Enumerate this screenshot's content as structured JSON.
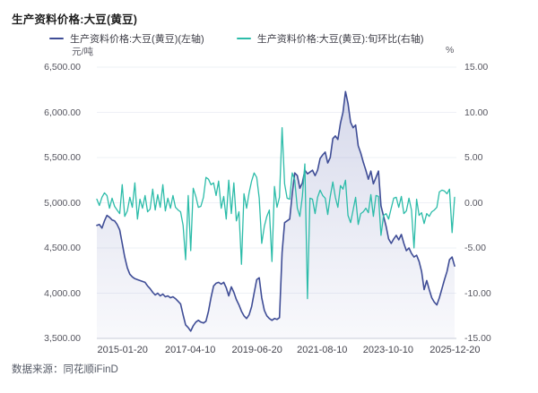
{
  "page": {
    "title": "生产资料价格:大豆(黄豆)",
    "source": "数据来源：同花顺iFinD"
  },
  "legend": [
    {
      "label": "生产资料价格:大豆(黄豆)(左轴)",
      "color": "#3F4D96"
    },
    {
      "label": "生产资料价格:大豆(黄豆):旬环比(右轴)",
      "color": "#2CBCA9"
    }
  ],
  "axes": {
    "left": {
      "unit": "元/吨",
      "ticks": [
        "6,500.00",
        "6,000.00",
        "5,500.00",
        "5,000.00",
        "4,500.00",
        "4,000.00",
        "3,500.00"
      ]
    },
    "right": {
      "unit": "%",
      "ticks": [
        "15.00",
        "10.00",
        "5.00",
        "0.00",
        "-5.00",
        "-10.00",
        "-15.00"
      ]
    },
    "x": {
      "ticks": [
        "2015-01-20",
        "2017-04-10",
        "2019-06-20",
        "2021-08-10",
        "2023-10-10",
        "2025-12-20"
      ]
    }
  },
  "colors": {
    "price_line": "#3F4D96",
    "pct_line": "#2CBCA9",
    "grid": "#eef0f6",
    "axis_line": "#c7ccd8",
    "area_top": "rgba(95,106,175,0.26)",
    "area_bottom": "rgba(120,130,190,0.05)"
  },
  "chart_data": {
    "type": "line",
    "title": "生产资料价格:大豆(黄豆)",
    "left_ylabel": "元/吨",
    "right_ylabel": "%",
    "left_ylim": [
      3500,
      6500
    ],
    "right_ylim": [
      -15,
      15
    ],
    "grid": true,
    "legend_position": "top",
    "x": [
      "2014-03",
      "2014-04",
      "2014-05",
      "2014-06",
      "2014-07",
      "2014-08",
      "2014-09",
      "2014-10",
      "2014-11",
      "2014-12",
      "2015-01",
      "2015-02",
      "2015-03",
      "2015-04",
      "2015-05",
      "2015-06",
      "2015-07",
      "2015-08",
      "2015-09",
      "2015-10",
      "2015-11",
      "2015-12",
      "2016-01",
      "2016-02",
      "2016-03",
      "2016-04",
      "2016-05",
      "2016-06",
      "2016-07",
      "2016-08",
      "2016-09",
      "2016-10",
      "2016-11",
      "2016-12",
      "2017-01",
      "2017-02",
      "2017-03",
      "2017-04",
      "2017-05",
      "2017-06",
      "2017-07",
      "2017-08",
      "2017-09",
      "2017-10",
      "2017-11",
      "2017-12",
      "2018-01",
      "2018-02",
      "2018-03",
      "2018-04",
      "2018-05",
      "2018-06",
      "2018-07",
      "2018-08",
      "2018-09",
      "2018-10",
      "2018-11",
      "2018-12",
      "2019-01",
      "2019-02",
      "2019-03",
      "2019-04",
      "2019-05",
      "2019-06",
      "2019-07",
      "2019-08",
      "2019-09",
      "2019-10",
      "2019-11",
      "2019-12",
      "2020-01",
      "2020-02",
      "2020-03",
      "2020-04",
      "2020-05",
      "2020-06",
      "2020-07",
      "2020-08",
      "2020-09",
      "2020-10",
      "2020-11",
      "2020-12",
      "2021-01",
      "2021-02",
      "2021-03",
      "2021-04",
      "2021-05",
      "2021-06",
      "2021-07",
      "2021-08",
      "2021-09",
      "2021-10",
      "2021-11",
      "2021-12",
      "2022-01",
      "2022-02",
      "2022-03",
      "2022-04",
      "2022-05",
      "2022-06",
      "2022-07",
      "2022-08",
      "2022-09",
      "2022-10",
      "2022-11",
      "2022-12",
      "2023-01",
      "2023-02",
      "2023-03",
      "2023-04",
      "2023-05",
      "2023-06",
      "2023-07",
      "2023-08",
      "2023-09",
      "2023-10",
      "2023-11",
      "2023-12",
      "2024-01",
      "2024-02",
      "2024-03",
      "2024-04",
      "2024-05",
      "2024-06",
      "2024-07",
      "2024-08",
      "2024-09",
      "2024-10",
      "2024-11",
      "2024-12",
      "2025-01",
      "2025-02",
      "2025-03",
      "2025-04",
      "2025-05",
      "2025-06",
      "2025-07",
      "2025-08",
      "2025-09",
      "2025-10",
      "2025-11",
      "2025-12"
    ],
    "series": [
      {
        "name": "生产资料价格:大豆(黄豆)(左轴)",
        "axis": "left",
        "color": "#3F4D96",
        "values": [
          4750,
          4760,
          4720,
          4800,
          4860,
          4840,
          4810,
          4800,
          4760,
          4700,
          4550,
          4400,
          4280,
          4210,
          4180,
          4160,
          4150,
          4140,
          4130,
          4120,
          4080,
          4050,
          4010,
          3980,
          4000,
          3970,
          3990,
          3960,
          3970,
          3950,
          3960,
          3940,
          3910,
          3880,
          3760,
          3650,
          3620,
          3580,
          3640,
          3680,
          3700,
          3680,
          3670,
          3690,
          3800,
          3950,
          4080,
          4110,
          4120,
          4100,
          4120,
          4060,
          3970,
          4070,
          4010,
          3930,
          3870,
          3800,
          3750,
          3720,
          3760,
          3850,
          4000,
          4150,
          4170,
          3950,
          3810,
          3750,
          3720,
          3700,
          3720,
          3710,
          3730,
          4450,
          4780,
          4800,
          4820,
          5100,
          5330,
          5300,
          5160,
          5220,
          5360,
          5320,
          5340,
          5360,
          5300,
          5360,
          5490,
          5530,
          5560,
          5440,
          5500,
          5710,
          5740,
          5700,
          5880,
          6000,
          6230,
          6100,
          5890,
          5830,
          5860,
          5630,
          5550,
          5450,
          5360,
          5260,
          5350,
          5210,
          5280,
          5350,
          4965,
          4850,
          4740,
          4600,
          4550,
          4600,
          4640,
          4590,
          4650,
          4550,
          4470,
          4500,
          4440,
          4400,
          4420,
          4350,
          4240,
          4040,
          4140,
          4040,
          3950,
          3900,
          3870,
          3950,
          4050,
          4150,
          4240,
          4370,
          4400,
          4300
        ]
      },
      {
        "name": "生产资料价格:大豆(黄豆):旬环比(右轴)",
        "axis": "right",
        "color": "#2CBCA9",
        "values": [
          0.4,
          -0.3,
          0.6,
          1.1,
          0.8,
          -0.6,
          0.5,
          -0.4,
          -0.8,
          -1.2,
          2.0,
          -1.5,
          -0.9,
          0.6,
          -0.5,
          2.2,
          -1.8,
          0.4,
          -0.6,
          0.8,
          -1.0,
          -0.7,
          1.5,
          -0.8,
          0.9,
          -0.5,
          2.0,
          -0.9,
          0.5,
          -0.6,
          0.8,
          -0.5,
          -0.8,
          -1.0,
          -2.5,
          -6.3,
          0.8,
          -5.3,
          1.6,
          0.7,
          -0.5,
          -0.4,
          0.6,
          2.8,
          2.6,
          2.0,
          2.2,
          0.8,
          2.4,
          -0.6,
          0.7,
          -1.8,
          2.5,
          -1.2,
          2.2,
          -2.0,
          -1.0,
          -6.8,
          1.0,
          -0.6,
          1.1,
          2.4,
          3.3,
          2.8,
          0.5,
          -4.5,
          -2.6,
          -1.5,
          -0.8,
          -6.5,
          1.8,
          -0.5,
          0.6,
          8.3,
          2.1,
          0.5,
          0.4,
          3.3,
          2.5,
          -0.6,
          -1.5,
          0.7,
          4.3,
          -10.6,
          0.5,
          0.4,
          -1.2,
          0.6,
          1.4,
          0.8,
          0.5,
          -1.3,
          0.7,
          2.3,
          0.6,
          -0.5,
          1.9,
          1.5,
          2.5,
          -1.4,
          -2.2,
          -0.8,
          0.6,
          -2.4,
          -1.2,
          -1.0,
          -0.6,
          -1.1,
          0.9,
          -1.5,
          0.8,
          0.7,
          -3.6,
          -1.4,
          -1.2,
          -1.8,
          -0.6,
          0.5,
          0.6,
          -0.5,
          0.7,
          -1.2,
          -0.9,
          0.5,
          -0.8,
          -5.0,
          0.4,
          -1.4,
          -1.1,
          -2.3,
          -1.2,
          -1.5,
          -1.0,
          -0.8,
          -0.5,
          1.2,
          1.4,
          1.3,
          1.0,
          1.5,
          -3.3,
          0.6
        ]
      }
    ]
  }
}
